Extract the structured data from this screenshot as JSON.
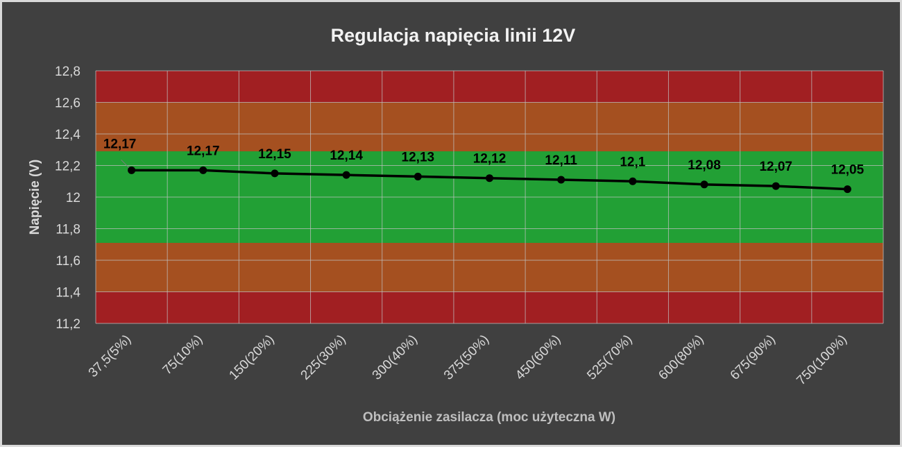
{
  "chart_data": {
    "type": "line",
    "title": "Regulacja napięcia linii 12V",
    "xlabel": "Obciążenie zasilacza (moc użyteczna W)",
    "ylabel": "Napięcie (V)",
    "categories": [
      "37,5(5%)",
      "75(10%)",
      "150(20%)",
      "225(30%)",
      "300(40%)",
      "375(50%)",
      "450(60%)",
      "525(70%)",
      "600(80%)",
      "675(90%)",
      "750(100%)"
    ],
    "series": [
      {
        "values": [
          12.17,
          12.17,
          12.15,
          12.14,
          12.13,
          12.12,
          12.11,
          12.1,
          12.08,
          12.07,
          12.05
        ]
      }
    ],
    "data_labels": [
      "12,17",
      "12,17",
      "12,15",
      "12,14",
      "12,13",
      "12,12",
      "12,11",
      "12,1",
      "12,08",
      "12,07",
      "12,05"
    ],
    "ylim": [
      11.2,
      12.8
    ],
    "yticks": [
      11.2,
      11.4,
      11.6,
      11.8,
      12.0,
      12.2,
      12.4,
      12.6,
      12.8
    ],
    "ytick_labels": [
      "11,2",
      "11,4",
      "11,6",
      "11,8",
      "12",
      "12,2",
      "12,4",
      "12,6",
      "12,8"
    ],
    "bands": [
      {
        "from": 11.2,
        "to": 11.4,
        "color": "#a11f22"
      },
      {
        "from": 11.4,
        "to": 11.71,
        "color": "#a55020"
      },
      {
        "from": 11.71,
        "to": 12.29,
        "color": "#22a035"
      },
      {
        "from": 12.29,
        "to": 12.6,
        "color": "#a55020"
      },
      {
        "from": 12.6,
        "to": 12.8,
        "color": "#a11f22"
      }
    ],
    "grid": true,
    "colors": {
      "background": "#404040",
      "line": "#000000",
      "grid": "#bfbfbf",
      "text": "#d9d9d9",
      "title": "#f2f2f2"
    }
  }
}
